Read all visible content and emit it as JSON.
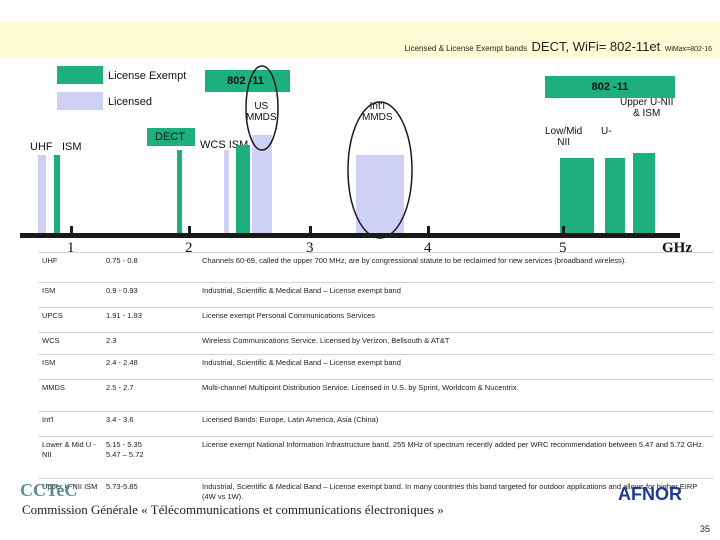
{
  "header": {
    "part1": "Licensed & License Exempt bands",
    "part2": "DECT, WiFi= 802-11et",
    "part3": "WiMax=802-16"
  },
  "legend": {
    "license_exempt": "License Exempt",
    "licensed": "Licensed",
    "colors": {
      "license_exempt": "#1db07e",
      "licensed": "#cfd0f5"
    }
  },
  "band_labels": {
    "b802_11_left": "802 -11",
    "b802_11_right": "802 -11",
    "us_mmds": "US\nMMDS",
    "intl_mmds": "Int'l\nMMDS",
    "upper_unii": "Upper U-NII\n& ISM",
    "lowmid_nii": "Low/Mid\nNII",
    "u_dash": "U-",
    "uhf": "UHF",
    "ism": "ISM",
    "dect": "DECT",
    "wcs_ism": "WCS  ISM"
  },
  "axis": {
    "ticks": [
      "1",
      "2",
      "3",
      "4",
      "5"
    ],
    "unit": "GHz"
  },
  "table": [
    {
      "band": "UHF",
      "range": "0.75 - 0.8",
      "desc": "Channels 60-69, called the upper 700 MHz, are by congressional statute to be reclaimed for new services (broadband wireless)."
    },
    {
      "band": "ISM",
      "range": "0.9 - 0.93",
      "desc": "Industrial, Scientific & Medical Band – License exempt band"
    },
    {
      "band": "UPCS",
      "range": "1.91 - 1.93",
      "desc": "License exempt Personal Communications Services"
    },
    {
      "band": "WCS",
      "range": "2.3",
      "desc": "Wireless Communications Service. Licensed by Verizon, Bellsouth & AT&T"
    },
    {
      "band": "ISM",
      "range": "2.4 - 2.48",
      "desc": "Industrial, Scientific & Medical Band – License exempt band"
    },
    {
      "band": "MMDS",
      "range": "2.5 - 2.7",
      "desc": "Multi-channel Multipoint Distribution Service. Licensed in U.S. by Sprint, Worldcom & Nucentrix."
    },
    {
      "band": "Int'l",
      "range": "3.4 - 3.6",
      "desc": "Licensed Bands: Europe, Latin America, Asia (China)"
    },
    {
      "band": "Lower & Mid U -NII",
      "range": "5.15 - 5.35\n5.47 – 5.72",
      "desc": "License exempt National Information Infrastructure band. 255 MHz of spectrum recently added per WRC recommendation between 5.47 and 5.72 GHz."
    },
    {
      "band": "Upper U-NII ISM",
      "range": "5.73-5.85",
      "desc": "Industrial, Scientific & Medical Band – License exempt band. In many countries this band targeted for outdoor applications and allows for higher EIRP (4W vs 1W)."
    }
  ],
  "footer": {
    "ccte": "CCTeC",
    "commission": "Commission Générale « Télécommunications et communications électroniques »",
    "afnor": "AFNOR",
    "page": "35"
  }
}
